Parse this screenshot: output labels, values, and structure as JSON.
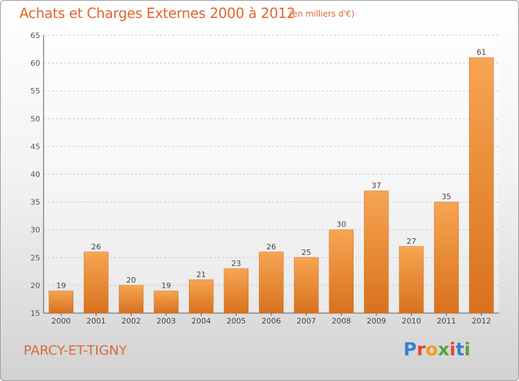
{
  "header": {
    "title": "Achats et Charges Externes 2000 à 2012",
    "unit": "(en milliers d'€)"
  },
  "footer": {
    "town": "PARCY-ET-TIGNY",
    "logo": "Proxiti"
  },
  "colors": {
    "title": "#e0662f",
    "bar_light": "#f7a552",
    "bar_dark": "#d8711e",
    "logo_letters": [
      "#3a7fd0",
      "#e8452c",
      "#f39a1e",
      "#5aa13c",
      "#e8452c",
      "#3a7fd0",
      "#5aa13c"
    ]
  },
  "chart_data": {
    "type": "bar",
    "categories": [
      "2000",
      "2001",
      "2002",
      "2003",
      "2004",
      "2005",
      "2006",
      "2007",
      "2008",
      "2009",
      "2010",
      "2011",
      "2012"
    ],
    "values": [
      19,
      26,
      20,
      19,
      21,
      23,
      26,
      25,
      30,
      37,
      27,
      35,
      61
    ],
    "ylim": [
      15,
      65
    ],
    "yticks": [
      15,
      20,
      25,
      30,
      35,
      40,
      45,
      50,
      55,
      60,
      65
    ],
    "grid": true,
    "data_labels": true
  }
}
